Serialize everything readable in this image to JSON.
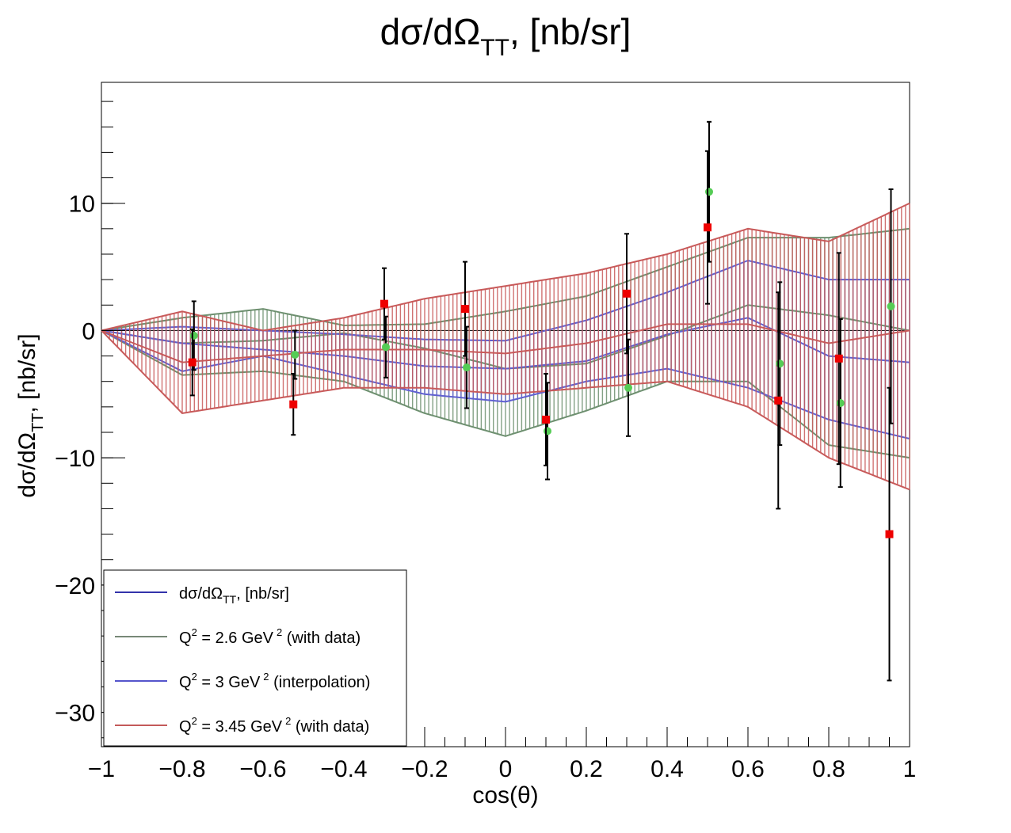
{
  "chart_data": {
    "type": "line",
    "title": "dσ/dΩ",
    "title_sub": "TT",
    "title_tail": ", [nb/sr]",
    "xlabel": "cos(θ)",
    "ylabel": "dσ/dΩ",
    "ylabel_sub": "TT",
    "ylabel_tail": ", [nb/sr]",
    "xlim": [
      -1,
      1
    ],
    "ylim": [
      -32.7,
      19.5
    ],
    "x_ticks": [
      "−1",
      "−0.8",
      "−0.6",
      "−0.4",
      "−0.2",
      "0",
      "0.2",
      "0.4",
      "0.6",
      "0.8",
      "1"
    ],
    "x_tick_values": [
      -1,
      -0.8,
      -0.6,
      -0.4,
      -0.2,
      0,
      0.2,
      0.4,
      0.6,
      0.8,
      1
    ],
    "y_ticks": [
      "10",
      "0",
      "−10",
      "−20",
      "−30"
    ],
    "y_tick_values": [
      10,
      0,
      -10,
      -20,
      -30
    ],
    "grid": false,
    "legend_position": "bottom-left",
    "legend": [
      {
        "label": "dσ/dΩ",
        "sub": "TT",
        "tail": ", [nb/sr]",
        "color": "#3333aa"
      },
      {
        "label": "Q",
        "sup": "2",
        "tail": " = 2.6 GeV",
        "sup2": "2",
        "tail2": " (with data)",
        "color": "#778877"
      },
      {
        "label": "Q",
        "sup": "2",
        "tail": " = 3 GeV",
        "sup2": "2",
        "tail2": " (interpolation)",
        "color": "#5555cc"
      },
      {
        "label": "Q",
        "sup": "2",
        "tail": " = 3.45 GeV",
        "sup2": "2",
        "tail2": " (with data)",
        "color": "#c45a5a"
      }
    ],
    "bands": [
      {
        "name": "Q² = 2.6 GeV² (with data)",
        "color": "#6e9070",
        "x": [
          -1.0,
          -0.8,
          -0.6,
          -0.4,
          -0.2,
          0.0,
          0.2,
          0.4,
          0.6,
          0.8,
          1.0
        ],
        "center": [
          0.0,
          -1.0,
          -0.8,
          -0.2,
          -1.4,
          -3.0,
          -2.6,
          -0.4,
          2.0,
          1.2,
          0.0
        ],
        "low": [
          0.0,
          -3.5,
          -3.2,
          -4.0,
          -6.5,
          -8.3,
          -6.3,
          -4.0,
          -4.0,
          -9.0,
          -10.0
        ],
        "high": [
          0.0,
          1.0,
          1.7,
          0.4,
          0.5,
          1.5,
          2.7,
          5.0,
          7.3,
          7.3,
          8.0
        ]
      },
      {
        "name": "Q² = 3 GeV² (interpolation)",
        "color": "#6060d0",
        "x": [
          -1.0,
          -0.8,
          -0.6,
          -0.4,
          -0.2,
          0.0,
          0.2,
          0.4,
          0.6,
          0.8,
          1.0
        ],
        "center": [
          0.0,
          -1.0,
          -1.5,
          -2.0,
          -2.8,
          -3.0,
          -2.4,
          -0.3,
          1.0,
          -2.0,
          -2.5
        ],
        "low": [
          0.0,
          -3.2,
          -2.0,
          -3.5,
          -5.0,
          -5.6,
          -4.0,
          -3.0,
          -4.5,
          -7.0,
          -8.5
        ],
        "high": [
          0.0,
          0.3,
          0.0,
          -0.3,
          -0.7,
          -0.8,
          0.8,
          3.0,
          5.5,
          4.0,
          4.0
        ]
      },
      {
        "name": "Q² = 3.45 GeV² (with data)",
        "color": "#c85a5a",
        "x": [
          -1.0,
          -0.8,
          -0.6,
          -0.4,
          -0.2,
          0.0,
          0.2,
          0.4,
          0.6,
          0.8,
          1.0
        ],
        "center": [
          0.0,
          -2.5,
          -2.0,
          -1.5,
          -1.5,
          -1.8,
          -1.0,
          0.5,
          0.5,
          -1.0,
          0.0
        ],
        "low": [
          0.0,
          -6.5,
          -5.5,
          -4.5,
          -4.5,
          -5.0,
          -4.5,
          -4.0,
          -6.0,
          -10.0,
          -12.5
        ],
        "high": [
          0.0,
          1.5,
          0.0,
          1.0,
          2.5,
          3.5,
          4.5,
          6.0,
          8.0,
          7.0,
          10.0
        ]
      }
    ],
    "series": [
      {
        "name": "Q² = 2.6 GeV² (with data)",
        "marker": "circle",
        "color": "#55cc55",
        "x": [
          -0.775,
          -0.525,
          -0.3,
          -0.1,
          0.1,
          0.3,
          0.5,
          0.675,
          0.825,
          0.95
        ],
        "y": [
          -0.4,
          -1.9,
          -1.3,
          -2.9,
          -7.9,
          -4.5,
          10.9,
          -2.6,
          -5.7,
          1.9
        ],
        "err": [
          2.7,
          1.9,
          2.4,
          3.2,
          3.8,
          3.8,
          5.5,
          6.4,
          6.6,
          9.2
        ]
      },
      {
        "name": "Q² = 3.45 GeV² (with data)",
        "marker": "square",
        "color": "#ee0000",
        "x": [
          -0.775,
          -0.525,
          -0.3,
          -0.1,
          0.1,
          0.3,
          0.5,
          0.675,
          0.825,
          0.95
        ],
        "y": [
          -2.5,
          -5.8,
          2.1,
          1.7,
          -7.0,
          2.9,
          8.1,
          -5.5,
          -2.2,
          -16.0
        ],
        "err": [
          2.6,
          2.4,
          2.8,
          3.7,
          3.6,
          4.7,
          6.0,
          8.5,
          8.3,
          11.5
        ]
      }
    ]
  }
}
